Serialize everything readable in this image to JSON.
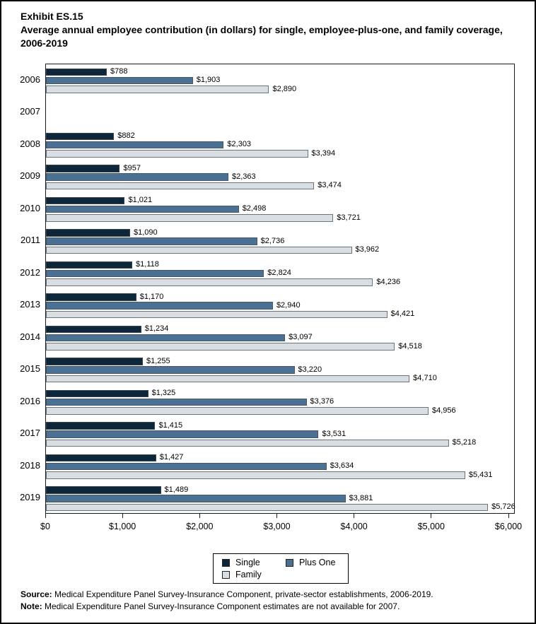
{
  "page": {
    "exhibit_label": "Exhibit ES.15",
    "title": "Average annual employee contribution (in dollars) for single, employee-plus-one, and family coverage, 2006-2019",
    "source_label": "Source:",
    "source_text": " Medical Expenditure Panel Survey-Insurance Component, private-sector establishments, 2006-2019.",
    "note_label": "Note:",
    "note_text": " Medical Expenditure Panel Survey-Insurance Component estimates are not available for 2007."
  },
  "colors": {
    "single": "#0E2639",
    "plus_one": "#4A7094",
    "family": "#D9DEE3",
    "plot_border": "#1a1a1a"
  },
  "chart_data": {
    "type": "bar",
    "orientation": "horizontal",
    "title": "Average annual employee contribution (in dollars) for single, employee-plus-one, and family coverage, 2006-2019",
    "categories": [
      "2006",
      "2007",
      "2008",
      "2009",
      "2010",
      "2011",
      "2012",
      "2013",
      "2014",
      "2015",
      "2016",
      "2017",
      "2018",
      "2019"
    ],
    "series": [
      {
        "name": "Single",
        "color": "#0E2639",
        "values": [
          788,
          null,
          882,
          957,
          1021,
          1090,
          1118,
          1170,
          1234,
          1255,
          1325,
          1415,
          1427,
          1489
        ]
      },
      {
        "name": "Plus One",
        "color": "#4A7094",
        "values": [
          1903,
          null,
          2303,
          2363,
          2498,
          2736,
          2824,
          2940,
          3097,
          3220,
          3376,
          3531,
          3634,
          3881
        ]
      },
      {
        "name": "Family",
        "color": "#D9DEE3",
        "values": [
          2890,
          null,
          3394,
          3474,
          3721,
          3962,
          4236,
          4421,
          4518,
          4710,
          4956,
          5218,
          5431,
          5726
        ]
      }
    ],
    "value_labels": true,
    "value_prefix": "$",
    "xlim": [
      0,
      6000
    ],
    "x_tick_interval": 1000,
    "x_tick_labels": [
      "$0",
      "$1,000",
      "$2,000",
      "$3,000",
      "$4,000",
      "$5,000",
      "$6,000"
    ],
    "legend_position": "bottom",
    "grid": false,
    "note": "2007 has no bars; estimates not available"
  }
}
